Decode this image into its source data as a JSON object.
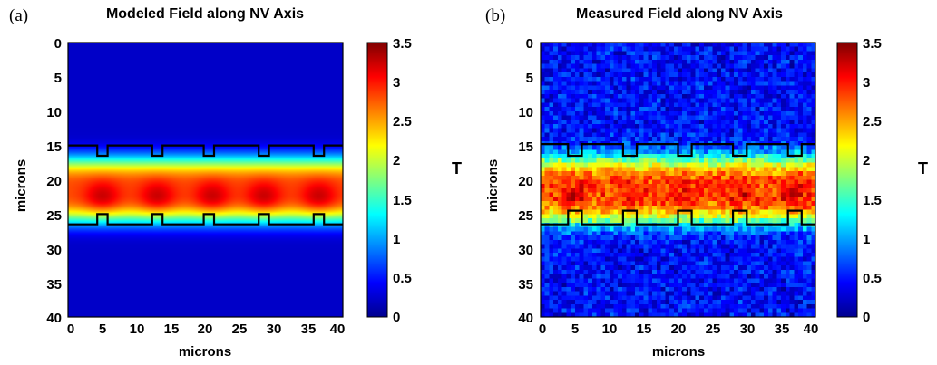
{
  "chart_data": [
    {
      "type": "heatmap",
      "panel_label": "(a)",
      "title": "Modeled Field along NV Axis",
      "xlabel": "microns",
      "ylabel": "microns",
      "x_ticks": [
        "0",
        "5",
        "10",
        "15",
        "20",
        "25",
        "30",
        "35",
        "40"
      ],
      "y_ticks": [
        "0",
        "5",
        "10",
        "15",
        "20",
        "25",
        "30",
        "35",
        "40"
      ],
      "xlim": [
        0,
        40
      ],
      "ylim": [
        0,
        40
      ],
      "y_reversed": true,
      "colormap": "jet",
      "noisy": false,
      "field": {
        "peak_T": 2.8,
        "band_center_um": 21.5,
        "band_width_um": 9.5,
        "hotspot_x_um": [
          5,
          13,
          21,
          28.5,
          36.5
        ],
        "hotspot_y_um": 22.5,
        "hotspot_amp_T": 0.45,
        "background_T": 0.25
      },
      "boundaries": {
        "upper_edge_um": 15,
        "upper_notch_um": 16.5,
        "lower_edge_um": 26.5,
        "lower_notch_um": 25,
        "notch_centers_um": [
          5,
          13,
          20.5,
          28.5,
          36.5
        ],
        "notch_width_um": 1.5
      },
      "colorbar": {
        "label": "T",
        "min": 0,
        "max": 3.5,
        "ticks": [
          "0",
          "0.5",
          "1",
          "1.5",
          "2",
          "2.5",
          "3",
          "3.5"
        ]
      }
    },
    {
      "type": "heatmap",
      "panel_label": "(b)",
      "title": "Measured Field along NV Axis",
      "xlabel": "microns",
      "ylabel": "microns",
      "x_ticks": [
        "0",
        "5",
        "10",
        "15",
        "20",
        "25",
        "30",
        "35",
        "40"
      ],
      "y_ticks": [
        "0",
        "5",
        "10",
        "15",
        "20",
        "25",
        "30",
        "35",
        "40"
      ],
      "xlim": [
        0,
        40
      ],
      "ylim": [
        0,
        40
      ],
      "y_reversed": true,
      "colormap": "jet",
      "noisy": true,
      "field": {
        "peak_T": 2.8,
        "band_center_um": 21.5,
        "band_width_um": 10,
        "hotspot_x_um": [
          5,
          13,
          21,
          29,
          37
        ],
        "hotspot_y_um": 22.5,
        "hotspot_amp_T": 0.3,
        "background_T": 0.45
      },
      "boundaries": {
        "upper_edge_um": 14.8,
        "upper_notch_um": 16.5,
        "lower_edge_um": 26.5,
        "lower_notch_um": 24.5,
        "notch_centers_um": [
          5,
          13,
          21,
          29,
          37
        ],
        "notch_width_um": 2
      },
      "colorbar": {
        "label": "T",
        "min": 0,
        "max": 3.5,
        "ticks": [
          "0",
          "0.5",
          "1",
          "1.5",
          "2",
          "2.5",
          "3",
          "3.5"
        ]
      }
    }
  ]
}
